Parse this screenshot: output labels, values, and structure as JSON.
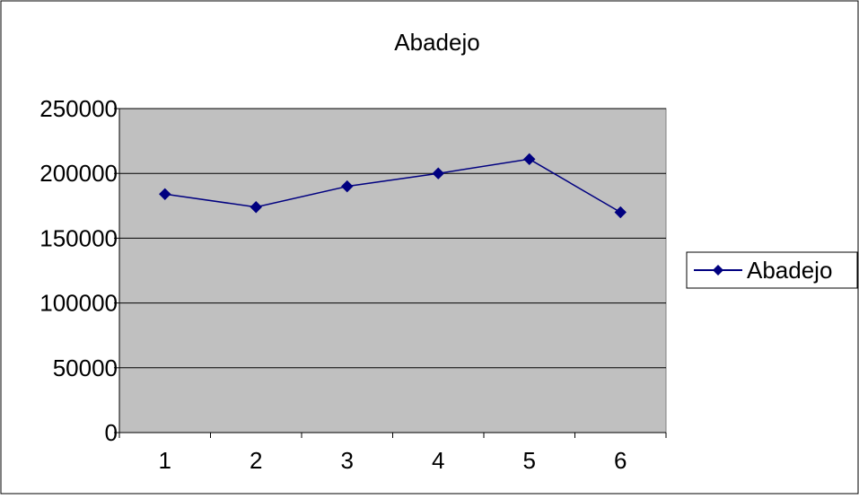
{
  "chart_data": {
    "type": "line",
    "title": "Abadejo",
    "x": [
      "1",
      "2",
      "3",
      "4",
      "5",
      "6"
    ],
    "series": [
      {
        "name": "Abadejo",
        "values": [
          184000,
          174000,
          190000,
          200000,
          211000,
          170000
        ],
        "color": "#000080",
        "marker": "diamond"
      }
    ],
    "ylim": [
      0,
      250000
    ],
    "yticks": [
      "0",
      "50000",
      "100000",
      "150000",
      "200000",
      "250000"
    ],
    "xlabel": "",
    "ylabel": "",
    "grid": true,
    "legend": "right",
    "plot_background": "#c0c0c0",
    "gridline_color": "#000000"
  }
}
